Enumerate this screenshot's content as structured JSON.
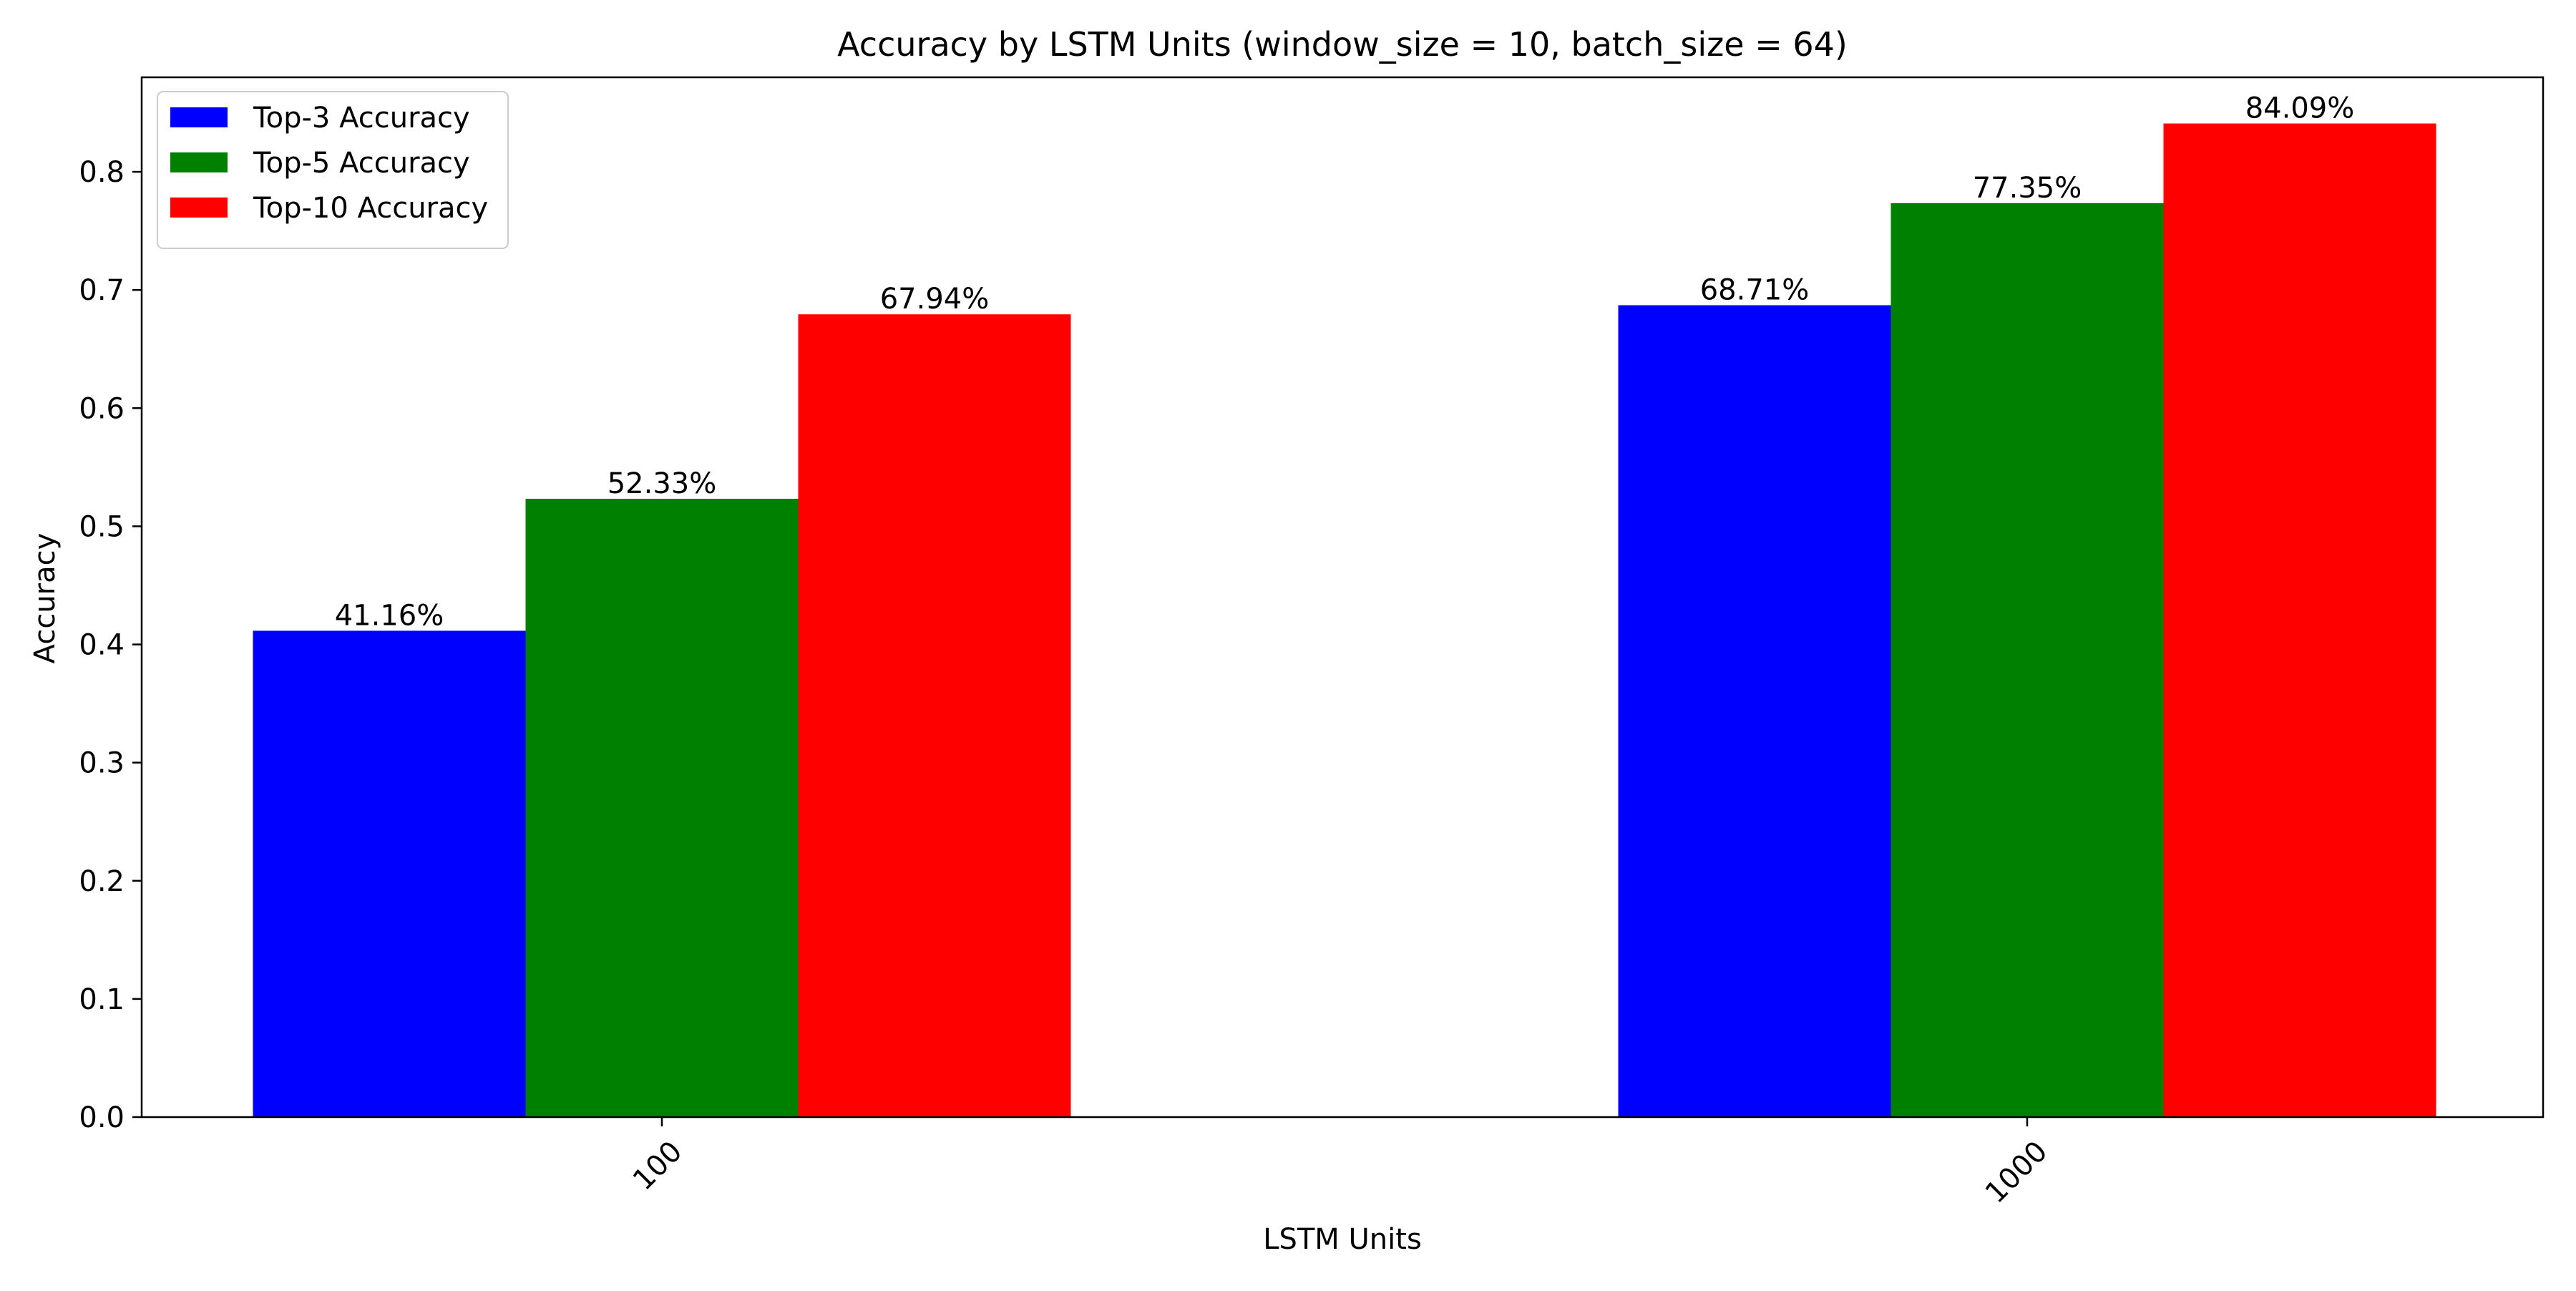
{
  "chart_data": {
    "type": "bar",
    "title": "Accuracy by LSTM Units (window_size = 10, batch_size = 64)",
    "xlabel": "LSTM Units",
    "ylabel": "Accuracy",
    "categories": [
      "100",
      "1000"
    ],
    "series": [
      {
        "name": "Top-3 Accuracy",
        "color": "#0000ff",
        "values": [
          0.4116,
          0.6871
        ],
        "labels": [
          "41.16%",
          "68.71%"
        ]
      },
      {
        "name": "Top-5 Accuracy",
        "color": "#008000",
        "values": [
          0.5233,
          0.7735
        ],
        "labels": [
          "52.33%",
          "77.35%"
        ]
      },
      {
        "name": "Top-10 Accuracy",
        "color": "#ff0000",
        "values": [
          0.6794,
          0.8409
        ],
        "labels": [
          "67.94%",
          "84.09%"
        ]
      }
    ],
    "ylim": [
      0,
      0.88
    ],
    "yticks": [
      0.0,
      0.1,
      0.2,
      0.3,
      0.4,
      0.5,
      0.6,
      0.7,
      0.8
    ],
    "ytick_labels": [
      "0.0",
      "0.1",
      "0.2",
      "0.3",
      "0.4",
      "0.5",
      "0.6",
      "0.7",
      "0.8"
    ],
    "x_tick_rotation_deg": 45,
    "legend_position": "top-left",
    "grid": false
  }
}
